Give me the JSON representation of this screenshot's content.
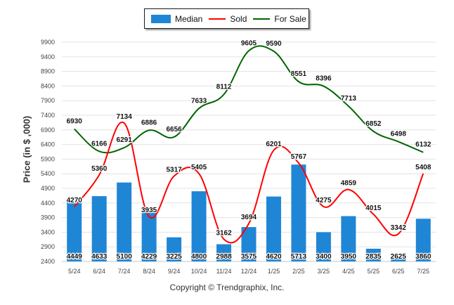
{
  "legend": {
    "median_label": "Median",
    "sold_label": "Sold",
    "for_sale_label": "For Sale"
  },
  "ylabel": "Price (in $ ,000)",
  "copyright": "Copyright © Trendgraphix, Inc.",
  "colors": {
    "bar": "#1f86d6",
    "sold": "#ff0000",
    "for_sale": "#006400"
  },
  "chart_data": {
    "type": "bar",
    "categories": [
      "5/24",
      "6/24",
      "7/24",
      "8/24",
      "9/24",
      "10/24",
      "11/24",
      "12/24",
      "1/25",
      "2/25",
      "3/25",
      "4/25",
      "5/25",
      "6/25",
      "7/25"
    ],
    "ylabel": "Price (in $ ,000)",
    "ylim": [
      2400,
      9900
    ],
    "yticks": [
      2400,
      2900,
      3400,
      3900,
      4400,
      4900,
      5400,
      5900,
      6400,
      6900,
      7400,
      7900,
      8400,
      8900,
      9400,
      9900
    ],
    "grid": true,
    "legend_position": "top-center",
    "series": [
      {
        "name": "Median",
        "type": "bar",
        "values": [
          4449,
          4633,
          5100,
          4229,
          3225,
          4800,
          2988,
          3575,
          4620,
          5713,
          3400,
          3950,
          2835,
          2625,
          3860
        ]
      },
      {
        "name": "Sold",
        "type": "line",
        "values": [
          4270,
          5360,
          7134,
          3935,
          5317,
          5405,
          3162,
          3694,
          6201,
          5767,
          4275,
          4859,
          4015,
          3342,
          5408
        ]
      },
      {
        "name": "For Sale",
        "type": "line",
        "values": [
          6930,
          6166,
          6291,
          6886,
          6656,
          7633,
          8112,
          9605,
          9590,
          8551,
          8396,
          7713,
          6852,
          6498,
          6132
        ]
      }
    ]
  }
}
